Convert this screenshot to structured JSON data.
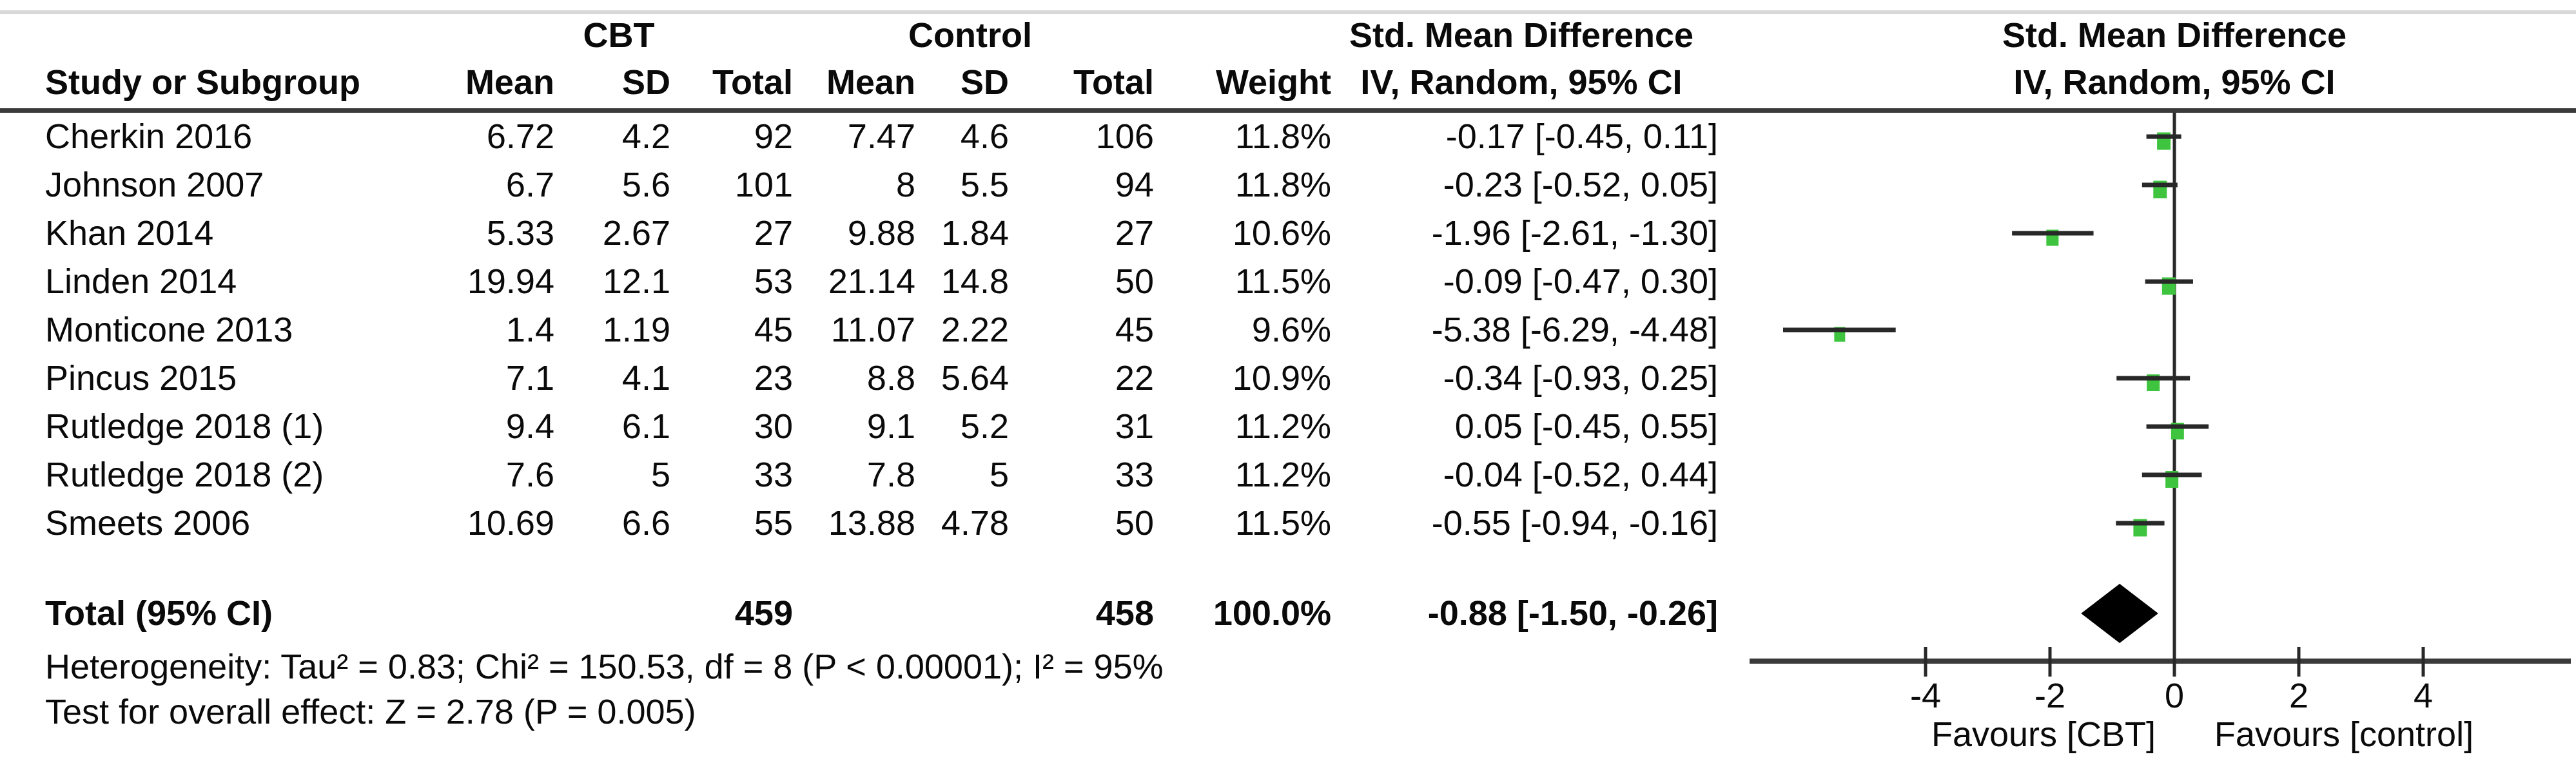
{
  "chart_data": {
    "type": "forest",
    "header": {
      "group_cbt": "CBT",
      "group_control": "Control",
      "smd_line1": "Std. Mean Difference",
      "smd_line2": "IV, Random, 95% CI",
      "plot_line1": "Std. Mean Difference",
      "plot_line2": "IV, Random, 95% CI",
      "col_study": "Study or Subgroup",
      "col_mean": "Mean",
      "col_sd": "SD",
      "col_total": "Total",
      "col_mean2": "Mean",
      "col_sd2": "SD",
      "col_total2": "Total",
      "col_weight": "Weight"
    },
    "studies": [
      {
        "name": "Cherkin 2016",
        "cbt_mean": "6.72",
        "cbt_sd": "4.2",
        "cbt_total": "92",
        "ctrl_mean": "7.47",
        "ctrl_sd": "4.6",
        "ctrl_total": "106",
        "weight": "11.8%",
        "smd_text": "-0.17 [-0.45, 0.11]",
        "est": -0.17,
        "lo": -0.45,
        "hi": 0.11,
        "weight_value": 11.8
      },
      {
        "name": "Johnson 2007",
        "cbt_mean": "6.7",
        "cbt_sd": "5.6",
        "cbt_total": "101",
        "ctrl_mean": "8",
        "ctrl_sd": "5.5",
        "ctrl_total": "94",
        "weight": "11.8%",
        "smd_text": "-0.23 [-0.52, 0.05]",
        "est": -0.23,
        "lo": -0.52,
        "hi": 0.05,
        "weight_value": 11.8
      },
      {
        "name": "Khan 2014",
        "cbt_mean": "5.33",
        "cbt_sd": "2.67",
        "cbt_total": "27",
        "ctrl_mean": "9.88",
        "ctrl_sd": "1.84",
        "ctrl_total": "27",
        "weight": "10.6%",
        "smd_text": "-1.96 [-2.61, -1.30]",
        "est": -1.96,
        "lo": -2.61,
        "hi": -1.3,
        "weight_value": 10.6
      },
      {
        "name": "Linden 2014",
        "cbt_mean": "19.94",
        "cbt_sd": "12.1",
        "cbt_total": "53",
        "ctrl_mean": "21.14",
        "ctrl_sd": "14.8",
        "ctrl_total": "50",
        "weight": "11.5%",
        "smd_text": "-0.09 [-0.47, 0.30]",
        "est": -0.09,
        "lo": -0.47,
        "hi": 0.3,
        "weight_value": 11.5
      },
      {
        "name": "Monticone 2013",
        "cbt_mean": "1.4",
        "cbt_sd": "1.19",
        "cbt_total": "45",
        "ctrl_mean": "11.07",
        "ctrl_sd": "2.22",
        "ctrl_total": "45",
        "weight": "9.6%",
        "smd_text": "-5.38 [-6.29, -4.48]",
        "est": -5.38,
        "lo": -6.29,
        "hi": -4.48,
        "weight_value": 9.6
      },
      {
        "name": "Pincus 2015",
        "cbt_mean": "7.1",
        "cbt_sd": "4.1",
        "cbt_total": "23",
        "ctrl_mean": "8.8",
        "ctrl_sd": "5.64",
        "ctrl_total": "22",
        "weight": "10.9%",
        "smd_text": "-0.34 [-0.93, 0.25]",
        "est": -0.34,
        "lo": -0.93,
        "hi": 0.25,
        "weight_value": 10.9
      },
      {
        "name": "Rutledge 2018 (1)",
        "cbt_mean": "9.4",
        "cbt_sd": "6.1",
        "cbt_total": "30",
        "ctrl_mean": "9.1",
        "ctrl_sd": "5.2",
        "ctrl_total": "31",
        "weight": "11.2%",
        "smd_text": "0.05 [-0.45, 0.55]",
        "est": 0.05,
        "lo": -0.45,
        "hi": 0.55,
        "weight_value": 11.2
      },
      {
        "name": "Rutledge 2018 (2)",
        "cbt_mean": "7.6",
        "cbt_sd": "5",
        "cbt_total": "33",
        "ctrl_mean": "7.8",
        "ctrl_sd": "5",
        "ctrl_total": "33",
        "weight": "11.2%",
        "smd_text": "-0.04 [-0.52, 0.44]",
        "est": -0.04,
        "lo": -0.52,
        "hi": 0.44,
        "weight_value": 11.2
      },
      {
        "name": "Smeets 2006",
        "cbt_mean": "10.69",
        "cbt_sd": "6.6",
        "cbt_total": "55",
        "ctrl_mean": "13.88",
        "ctrl_sd": "4.78",
        "ctrl_total": "50",
        "weight": "11.5%",
        "smd_text": "-0.55 [-0.94, -0.16]",
        "est": -0.55,
        "lo": -0.94,
        "hi": -0.16,
        "weight_value": 11.5
      }
    ],
    "total": {
      "label": "Total (95% CI)",
      "cbt_total": "459",
      "ctrl_total": "458",
      "weight": "100.0%",
      "smd_text": "-0.88 [-1.50, -0.26]",
      "est": -0.88,
      "lo": -1.5,
      "hi": -0.26
    },
    "footnotes": {
      "heterogeneity": "Heterogeneity: Tau² = 0.83; Chi² = 150.53, df = 8 (P < 0.00001); I² = 95%",
      "overall_effect": "Test for overall effect: Z = 2.78 (P = 0.005)"
    },
    "axis": {
      "ticks": [
        -4,
        -2,
        0,
        2,
        4
      ],
      "min": -6.8,
      "max": 6.3,
      "favours_left": "Favours [CBT]",
      "favours_right": "Favours [control]"
    },
    "colors": {
      "square": "#3ec43e",
      "diamond": "#000000",
      "line": "#282828",
      "axis": "#3a3a3a"
    }
  }
}
